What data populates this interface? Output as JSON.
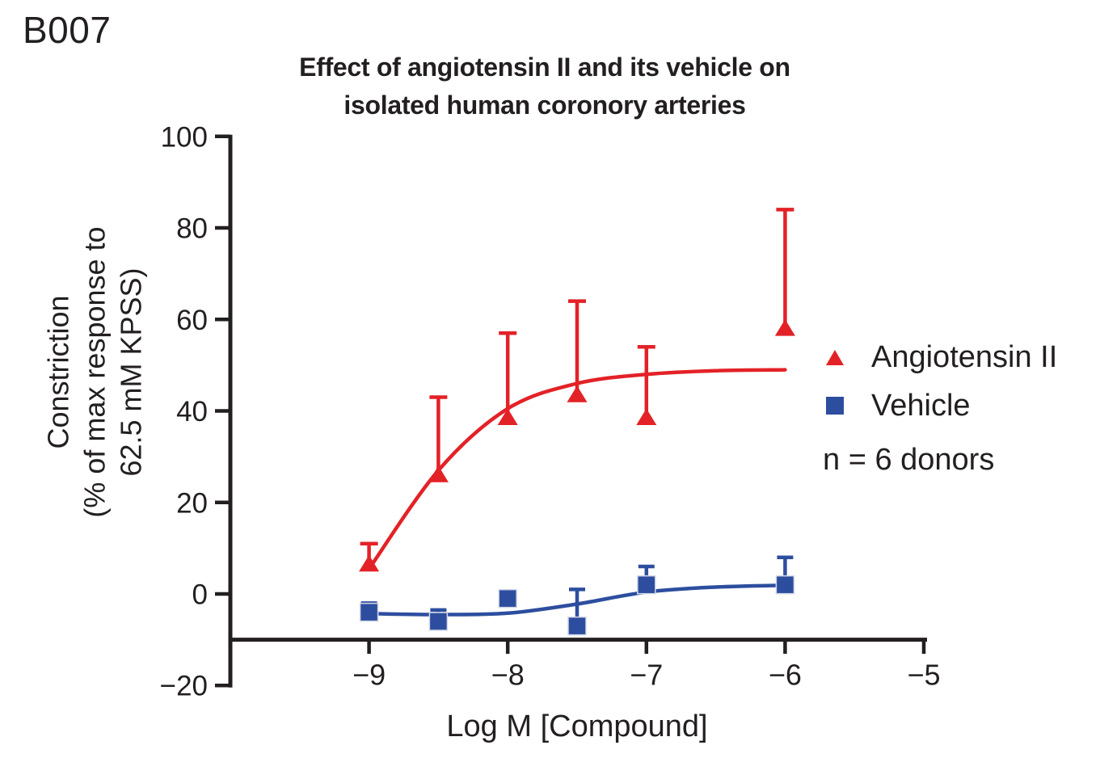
{
  "figure_label": "B007",
  "title_line1": "Effect of angiotensin II and its vehicle on",
  "title_line2": "isolated human coronory arteries",
  "y_axis_label_lines": [
    "Constriction",
    "(% of max response to",
    "62.5 mM KPSS)"
  ],
  "x_axis_label": "Log M [Compound]",
  "legend": {
    "series1_label": "Angiotensin II",
    "series2_label": "Vehicle",
    "note": "n = 6 donors"
  },
  "colors": {
    "red": "#E32227",
    "blue": "#2D4E9F",
    "axis": "#231F20",
    "square_outline": "#d3d8e8"
  },
  "chart_data": {
    "type": "scatter",
    "title": "Effect of angiotensin II and its vehicle on isolated human coronory arteries",
    "xlabel": "Log M [Compound]",
    "ylabel": "Constriction (% of max response to 62.5 mM KPSS)",
    "xlim": [
      -10,
      -5
    ],
    "ylim": [
      -20,
      100
    ],
    "x_axis_baseline_y": -10,
    "grid": false,
    "legend_position": "right",
    "legend_note": "n = 6 donors",
    "n_donors": 6,
    "xtick_values": [
      -9,
      -8,
      -7,
      -6,
      -5
    ],
    "xtick_labels": [
      "−9",
      "−8",
      "−7",
      "−6",
      "−5"
    ],
    "ytick_values": [
      100,
      80,
      60,
      40,
      20,
      0,
      -20
    ],
    "ytick_labels": [
      "100",
      "80",
      "60",
      "40",
      "20",
      "0",
      "−20"
    ],
    "series": [
      {
        "name": "Angiotensin II",
        "slug": "angiotensin",
        "marker": "triangle",
        "color": "#E32227",
        "x": [
          -9,
          -8.5,
          -8,
          -7.5,
          -7,
          -6
        ],
        "y": [
          6.5,
          26,
          38.5,
          43.5,
          38.5,
          58
        ],
        "error_top": [
          11,
          43,
          57,
          64,
          54,
          84
        ],
        "fit_curve": [
          [
            -9,
            5.5
          ],
          [
            -8.5,
            27
          ],
          [
            -8,
            40.5
          ],
          [
            -7.5,
            46
          ],
          [
            -7,
            48
          ],
          [
            -6.5,
            48.8
          ],
          [
            -6,
            49
          ]
        ]
      },
      {
        "name": "Vehicle",
        "slug": "vehicle",
        "marker": "square",
        "color": "#2D4E9F",
        "x": [
          -9,
          -8.5,
          -8,
          -7.5,
          -7,
          -6
        ],
        "y": [
          -4,
          -6,
          -1,
          -7,
          2,
          2
        ],
        "error_top": [
          -2,
          -3.5,
          null,
          1,
          6,
          8
        ],
        "fit_curve": [
          [
            -9,
            -4.3
          ],
          [
            -8.5,
            -4.5
          ],
          [
            -8,
            -4.2
          ],
          [
            -7.5,
            -2.2
          ],
          [
            -7,
            0.4
          ],
          [
            -6.5,
            1.5
          ],
          [
            -6,
            1.9
          ]
        ]
      }
    ]
  }
}
